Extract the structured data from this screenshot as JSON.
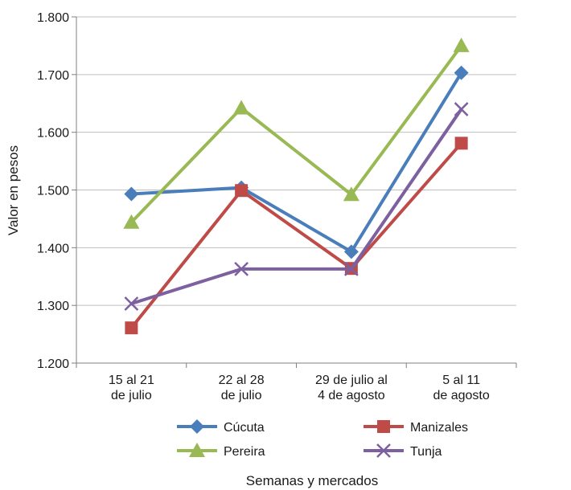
{
  "chart_data": {
    "type": "line",
    "title": "",
    "xlabel": "Semanas y mercados",
    "ylabel": "Valor en pesos",
    "ylim": [
      1200,
      1800
    ],
    "yticks": [
      {
        "value": 1200,
        "label": "1.200"
      },
      {
        "value": 1300,
        "label": "1.300"
      },
      {
        "value": 1400,
        "label": "1.400"
      },
      {
        "value": 1500,
        "label": "1.500"
      },
      {
        "value": 1600,
        "label": "1.600"
      },
      {
        "value": 1700,
        "label": "1.700"
      },
      {
        "value": 1800,
        "label": "1.800"
      }
    ],
    "grid": true,
    "legend_position": "bottom",
    "categories": [
      [
        "15 al 21",
        "de julio"
      ],
      [
        "22 al 28",
        "de julio"
      ],
      [
        "29 de julio al",
        "4 de agosto"
      ],
      [
        "5 al 11",
        "de agosto"
      ]
    ],
    "series": [
      {
        "name": "Cúcuta",
        "color": "#4a7ebb",
        "marker": "diamond",
        "values": [
          1493,
          1504,
          1393,
          1703
        ]
      },
      {
        "name": "Manizales",
        "color": "#be4b48",
        "marker": "square",
        "values": [
          1261,
          1499,
          1364,
          1581
        ]
      },
      {
        "name": "Pereira",
        "color": "#98b954",
        "marker": "triangle",
        "values": [
          1444,
          1642,
          1492,
          1750
        ]
      },
      {
        "name": "Tunja",
        "color": "#7d60a0",
        "marker": "x",
        "values": [
          1303,
          1363,
          1363,
          1640
        ]
      }
    ]
  }
}
